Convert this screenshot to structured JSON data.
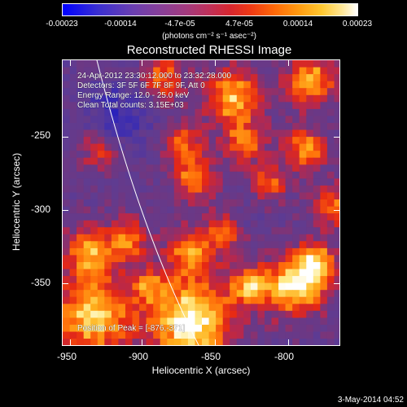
{
  "colorbar": {
    "ticks": [
      "-0.00023",
      "-0.00014",
      "-4.7e-05",
      "4.7e-05",
      "0.00014",
      "0.00023"
    ],
    "units": "(photons cm⁻² s⁻¹ asec⁻²)"
  },
  "title": "Reconstructed RHESSI Image",
  "info": {
    "time": "24-Apr-2012 23:30:12.000 to 23:32:28.000",
    "detectors": "Detectors: 3F 5F 6F 7F 8F 9F, Att 0",
    "energy": "Energy Range: 12.0 - 25.0 keV",
    "clean": "Clean    Total counts: 3.15E+03",
    "peak": "Position of Peak = [-876,-371]"
  },
  "axes": {
    "xlabel": "Heliocentric X (arcsec)",
    "ylabel": "Heliocentric Y (arcsec)",
    "xticks": [
      "-950",
      "-900",
      "-850",
      "-800"
    ],
    "yticks": [
      "-250",
      "-300",
      "-350"
    ]
  },
  "timestamp": "3-May-2014 04:52",
  "colors": {
    "min": "#0000ff",
    "max": "#ffffff",
    "limb": "#ffffff"
  }
}
